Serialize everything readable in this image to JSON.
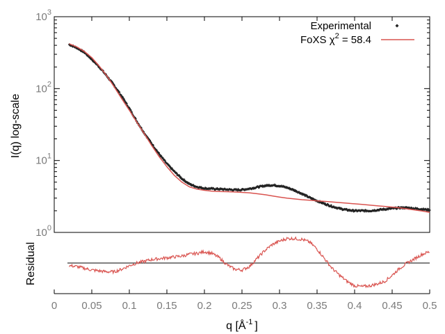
{
  "chart_data": {
    "type": "line",
    "x_axis": {
      "label_main": "q [Å",
      "label_sup": "-1",
      "label_end": "]",
      "range": [
        0,
        0.5
      ],
      "ticks": [
        0,
        0.05,
        0.1,
        0.15,
        0.2,
        0.25,
        0.3,
        0.35,
        0.4,
        0.45,
        0.5
      ],
      "tick_labels": [
        "0",
        "0.05",
        "0.1",
        "0.15",
        "0.2",
        "0.25",
        "0.3",
        "0.35",
        "0.4",
        "0.45",
        "0.5"
      ]
    },
    "top_panel": {
      "ylabel": "I(q) log-scale",
      "yscale": "log",
      "ylim": [
        1,
        1000
      ],
      "yticks": [
        {
          "value": 1,
          "base": "10",
          "exp": "0"
        },
        {
          "value": 10,
          "base": "10",
          "exp": "1"
        },
        {
          "value": 100,
          "base": "10",
          "exp": "2"
        },
        {
          "value": 1000,
          "base": "10",
          "exp": "3"
        }
      ],
      "series": [
        {
          "name": "Experimental",
          "style": "points",
          "color": "#222222",
          "x": [
            0.02,
            0.03,
            0.04,
            0.05,
            0.06,
            0.07,
            0.08,
            0.09,
            0.1,
            0.11,
            0.12,
            0.13,
            0.14,
            0.15,
            0.16,
            0.17,
            0.18,
            0.19,
            0.2,
            0.21,
            0.22,
            0.23,
            0.24,
            0.25,
            0.26,
            0.27,
            0.28,
            0.29,
            0.3,
            0.31,
            0.32,
            0.33,
            0.34,
            0.35,
            0.36,
            0.37,
            0.38,
            0.39,
            0.4,
            0.41,
            0.42,
            0.43,
            0.44,
            0.45,
            0.46,
            0.47,
            0.48,
            0.49,
            0.5
          ],
          "y": [
            410,
            370,
            320,
            255,
            200,
            150,
            110,
            78,
            53,
            35,
            24,
            17,
            12.2,
            9.0,
            7.0,
            5.6,
            4.7,
            4.3,
            4.1,
            4.05,
            4.0,
            3.95,
            3.9,
            3.92,
            4.05,
            4.25,
            4.45,
            4.55,
            4.45,
            4.2,
            3.85,
            3.45,
            3.05,
            2.75,
            2.5,
            2.3,
            2.15,
            2.05,
            2.0,
            2.0,
            2.0,
            2.05,
            2.1,
            2.15,
            2.2,
            2.2,
            2.15,
            2.1,
            2.05
          ]
        },
        {
          "name": "FoXS χ",
          "name_sup": "2",
          "name_suffix": " = 58.4",
          "style": "line",
          "color": "#d9534f",
          "x": [
            0.02,
            0.03,
            0.04,
            0.05,
            0.06,
            0.07,
            0.08,
            0.09,
            0.1,
            0.11,
            0.12,
            0.13,
            0.14,
            0.15,
            0.16,
            0.17,
            0.18,
            0.19,
            0.2,
            0.21,
            0.22,
            0.23,
            0.24,
            0.25,
            0.26,
            0.27,
            0.28,
            0.29,
            0.3,
            0.31,
            0.32,
            0.33,
            0.34,
            0.35,
            0.36,
            0.37,
            0.38,
            0.39,
            0.4,
            0.41,
            0.42,
            0.43,
            0.44,
            0.45,
            0.46,
            0.47,
            0.48,
            0.49,
            0.5
          ],
          "y": [
            420,
            380,
            330,
            270,
            205,
            150,
            105,
            72,
            50,
            34,
            23.5,
            16,
            11.2,
            8.2,
            6.2,
            5.0,
            4.3,
            4.0,
            3.85,
            3.75,
            3.7,
            3.68,
            3.65,
            3.6,
            3.55,
            3.45,
            3.35,
            3.22,
            3.1,
            3.0,
            2.92,
            2.85,
            2.8,
            2.75,
            2.7,
            2.65,
            2.6,
            2.55,
            2.5,
            2.45,
            2.4,
            2.35,
            2.3,
            2.25,
            2.2,
            2.12,
            2.05,
            1.98,
            1.9
          ]
        }
      ],
      "legend_position": "top-right"
    },
    "bottom_panel": {
      "ylabel": "Residual",
      "reference_line": 0,
      "ylim": [
        -0.35,
        0.35
      ],
      "series": {
        "color": "#d9534f",
        "x": [
          0.02,
          0.03,
          0.04,
          0.05,
          0.06,
          0.07,
          0.08,
          0.09,
          0.1,
          0.11,
          0.12,
          0.13,
          0.14,
          0.15,
          0.16,
          0.17,
          0.18,
          0.19,
          0.2,
          0.21,
          0.22,
          0.23,
          0.24,
          0.25,
          0.26,
          0.27,
          0.28,
          0.29,
          0.3,
          0.31,
          0.32,
          0.33,
          0.34,
          0.35,
          0.36,
          0.37,
          0.38,
          0.39,
          0.4,
          0.41,
          0.42,
          0.43,
          0.44,
          0.45,
          0.46,
          0.47,
          0.48,
          0.49,
          0.5
        ],
        "y": [
          -0.03,
          -0.04,
          -0.06,
          -0.08,
          -0.09,
          -0.1,
          -0.1,
          -0.07,
          -0.03,
          0.0,
          0.02,
          0.04,
          0.05,
          0.06,
          0.07,
          0.08,
          0.1,
          0.11,
          0.13,
          0.11,
          0.06,
          -0.02,
          -0.07,
          -0.08,
          -0.04,
          0.05,
          0.14,
          0.21,
          0.25,
          0.28,
          0.28,
          0.27,
          0.24,
          0.16,
          0.05,
          -0.06,
          -0.14,
          -0.21,
          -0.26,
          -0.27,
          -0.26,
          -0.24,
          -0.21,
          -0.14,
          -0.06,
          0.0,
          0.05,
          0.1,
          0.13
        ]
      }
    }
  }
}
